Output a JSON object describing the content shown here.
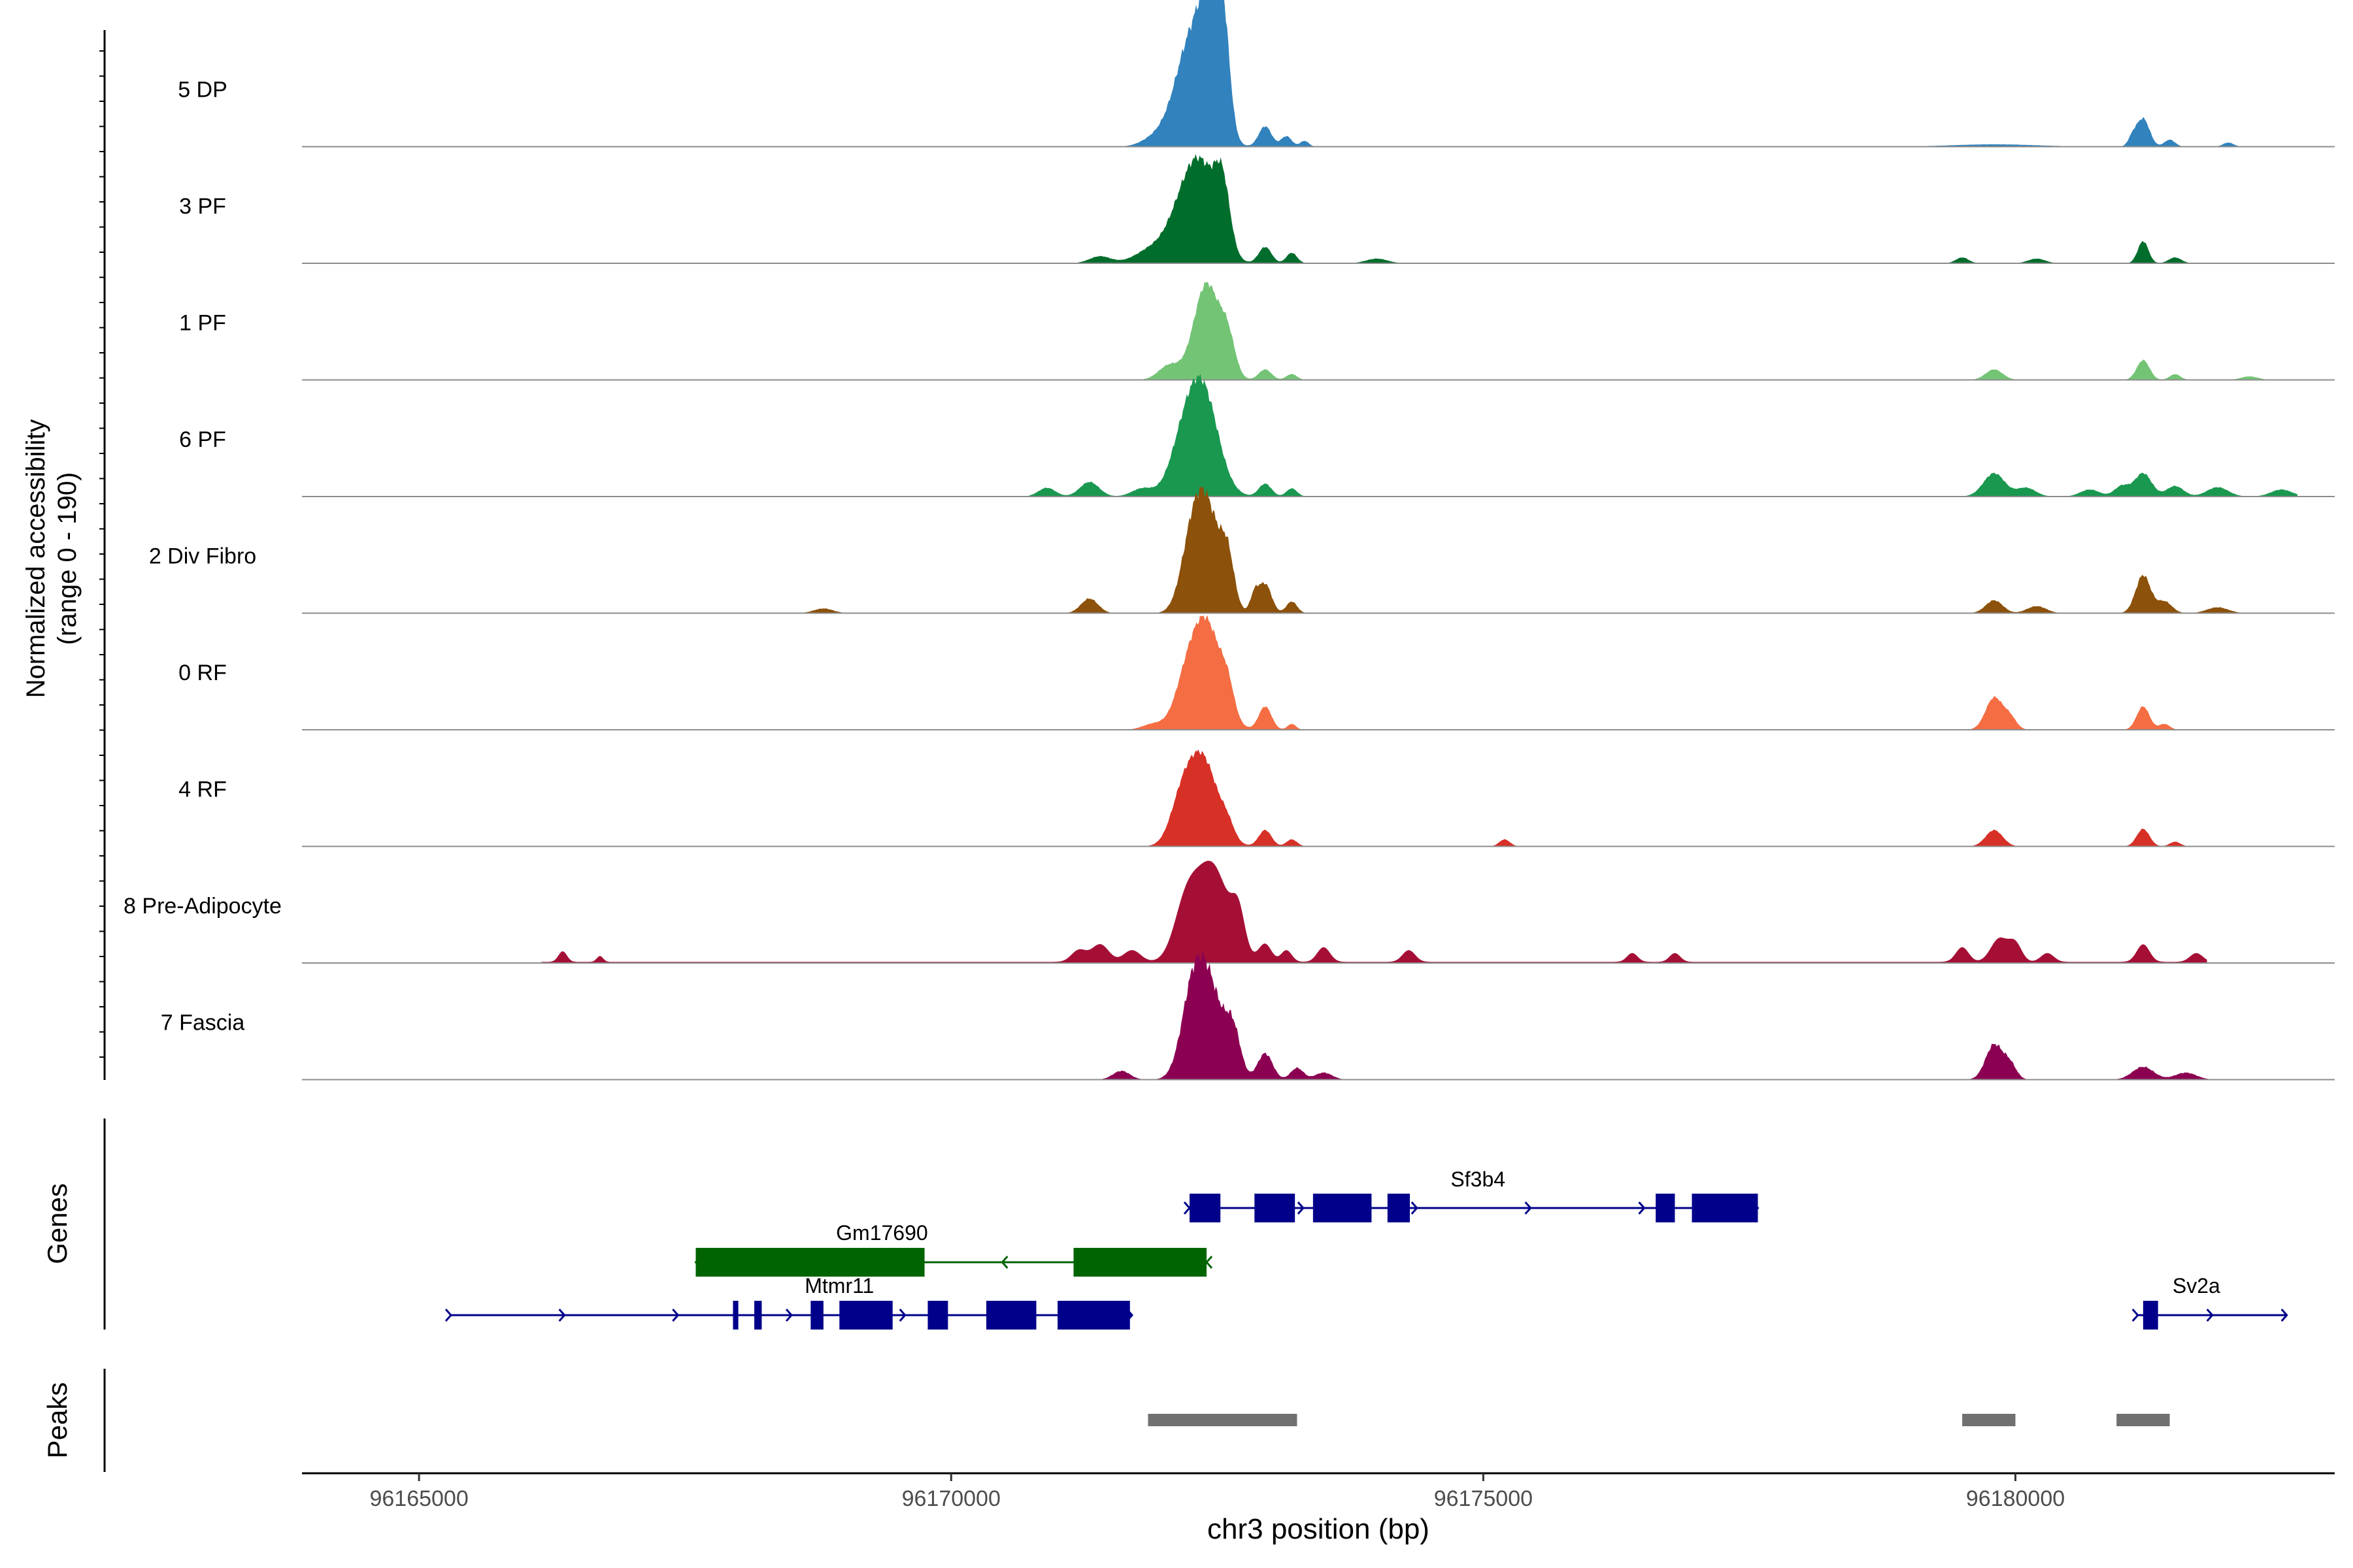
{
  "chart_data": {
    "type": "area",
    "ylabel": "Normalized accessibility",
    "ylabel_range": "(range 0 - 190)",
    "ylim": [
      0,
      190
    ],
    "xlabel": "chr3 position (bp)",
    "xlim": [
      96163900,
      96183000
    ],
    "xticks": [
      96165000,
      96170000,
      96175000,
      96180000
    ],
    "tracks": [
      {
        "name": "5 DP",
        "color": "#3182bd",
        "start": 96165000,
        "end": 96182550,
        "noise": 0.055,
        "peaks": [
          [
            96172270,
            160,
            190
          ],
          [
            96172450,
            95,
            165
          ],
          [
            96172560,
            60,
            140
          ],
          [
            96172950,
            60,
            35
          ],
          [
            96173150,
            50,
            18
          ],
          [
            96173320,
            40,
            10
          ],
          [
            96171900,
            120,
            12
          ],
          [
            96181200,
            60,
            48
          ],
          [
            96181100,
            40,
            15
          ],
          [
            96181450,
            50,
            12
          ],
          [
            96182000,
            50,
            7
          ],
          [
            96179800,
            400,
            4
          ]
        ]
      },
      {
        "name": "3 PF",
        "color": "#006d2c",
        "start": 96165000,
        "end": 96182600,
        "noise": 0.05,
        "peaks": [
          [
            96172350,
            150,
            160
          ],
          [
            96172550,
            70,
            100
          ],
          [
            96172150,
            130,
            55
          ],
          [
            96171900,
            160,
            25
          ],
          [
            96172950,
            60,
            28
          ],
          [
            96173200,
            50,
            18
          ],
          [
            96171400,
            100,
            12
          ],
          [
            96174000,
            100,
            8
          ],
          [
            96181200,
            50,
            38
          ],
          [
            96181500,
            60,
            10
          ],
          [
            96179500,
            60,
            10
          ],
          [
            96180200,
            80,
            8
          ]
        ]
      },
      {
        "name": "1 PF",
        "color": "#74c476",
        "start": 96165000,
        "end": 96182600,
        "noise": 0.04,
        "peaks": [
          [
            96172400,
            120,
            165
          ],
          [
            96172600,
            70,
            60
          ],
          [
            96172050,
            100,
            25
          ],
          [
            96172950,
            60,
            18
          ],
          [
            96173200,
            50,
            10
          ],
          [
            96179800,
            80,
            18
          ],
          [
            96181200,
            60,
            34
          ],
          [
            96181500,
            50,
            10
          ],
          [
            96182200,
            80,
            6
          ]
        ]
      },
      {
        "name": "6 PF",
        "color": "#1a9850",
        "start": 96165000,
        "end": 96182650,
        "noise": 0.05,
        "peaks": [
          [
            96172350,
            150,
            190
          ],
          [
            96172150,
            120,
            50
          ],
          [
            96172950,
            60,
            22
          ],
          [
            96173200,
            50,
            14
          ],
          [
            96171300,
            90,
            25
          ],
          [
            96170900,
            80,
            15
          ],
          [
            96171800,
            100,
            14
          ],
          [
            96179800,
            100,
            40
          ],
          [
            96180100,
            90,
            15
          ],
          [
            96180700,
            90,
            12
          ],
          [
            96181200,
            80,
            40
          ],
          [
            96181000,
            70,
            18
          ],
          [
            96181500,
            80,
            18
          ],
          [
            96181900,
            100,
            16
          ],
          [
            96182500,
            100,
            12
          ]
        ]
      },
      {
        "name": "2 Div Fibro",
        "color": "#8c510a",
        "start": 96165000,
        "end": 96182600,
        "noise": 0.06,
        "peaks": [
          [
            96172400,
            130,
            180
          ],
          [
            96172250,
            100,
            75
          ],
          [
            96172600,
            60,
            70
          ],
          [
            96172950,
            60,
            50
          ],
          [
            96172850,
            40,
            30
          ],
          [
            96173200,
            50,
            20
          ],
          [
            96171300,
            80,
            25
          ],
          [
            96179800,
            80,
            22
          ],
          [
            96180200,
            90,
            12
          ],
          [
            96181200,
            70,
            65
          ],
          [
            96181400,
            70,
            20
          ],
          [
            96181900,
            100,
            10
          ],
          [
            96168800,
            90,
            8
          ]
        ]
      },
      {
        "name": "0 RF",
        "color": "#f46d43",
        "start": 96165000,
        "end": 96182500,
        "noise": 0.04,
        "peaks": [
          [
            96172400,
            140,
            180
          ],
          [
            96172200,
            110,
            60
          ],
          [
            96172600,
            60,
            40
          ],
          [
            96172950,
            60,
            40
          ],
          [
            96173200,
            40,
            10
          ],
          [
            96171900,
            100,
            10
          ],
          [
            96179800,
            80,
            55
          ],
          [
            96179950,
            60,
            20
          ],
          [
            96181200,
            60,
            40
          ],
          [
            96181400,
            50,
            10
          ]
        ]
      },
      {
        "name": "4 RF",
        "color": "#d73027",
        "start": 96165000,
        "end": 96182600,
        "noise": 0.04,
        "peaks": [
          [
            96172350,
            150,
            155
          ],
          [
            96172150,
            100,
            45
          ],
          [
            96172600,
            60,
            20
          ],
          [
            96172950,
            60,
            28
          ],
          [
            96173200,
            50,
            12
          ],
          [
            96175200,
            50,
            12
          ],
          [
            96179800,
            80,
            28
          ],
          [
            96181200,
            60,
            30
          ],
          [
            96181500,
            50,
            8
          ]
        ]
      },
      {
        "name": "8 Pre-Adipocyte",
        "color": "#a50f36",
        "start": 96166150,
        "end": 96181800,
        "noise": 0,
        "min": 2,
        "peaks": [
          [
            96172450,
            160,
            165
          ],
          [
            96172200,
            110,
            80
          ],
          [
            96172700,
            60,
            60
          ],
          [
            96172950,
            60,
            30
          ],
          [
            96173150,
            50,
            20
          ],
          [
            96173500,
            60,
            25
          ],
          [
            96171400,
            80,
            30
          ],
          [
            96171200,
            70,
            20
          ],
          [
            96171700,
            80,
            20
          ],
          [
            96174300,
            60,
            20
          ],
          [
            96176400,
            50,
            15
          ],
          [
            96176800,
            50,
            15
          ],
          [
            96179500,
            60,
            25
          ],
          [
            96179850,
            80,
            40
          ],
          [
            96180000,
            60,
            30
          ],
          [
            96180300,
            60,
            15
          ],
          [
            96181200,
            60,
            30
          ],
          [
            96181700,
            60,
            15
          ],
          [
            96166350,
            40,
            18
          ],
          [
            96166700,
            30,
            10
          ]
        ]
      },
      {
        "name": "7 Fascia",
        "color": "#8c0052",
        "start": 96165000,
        "end": 96182550,
        "noise": 0.07,
        "peaks": [
          [
            96172400,
            140,
            175
          ],
          [
            96172250,
            100,
            80
          ],
          [
            96172650,
            70,
            70
          ],
          [
            96172950,
            70,
            45
          ],
          [
            96173250,
            60,
            20
          ],
          [
            96173500,
            80,
            12
          ],
          [
            96171600,
            80,
            15
          ],
          [
            96179800,
            80,
            60
          ],
          [
            96179950,
            60,
            25
          ],
          [
            96181200,
            100,
            22
          ],
          [
            96181600,
            100,
            12
          ]
        ]
      }
    ],
    "genes": [
      {
        "name": "Sf3b4",
        "color": "#00008b",
        "strand": "+",
        "start": 96172240,
        "end": 96177580,
        "exons": [
          [
            96172240,
            96172530
          ],
          [
            96172850,
            96173230
          ],
          [
            96173400,
            96173950
          ],
          [
            96174100,
            96174310
          ],
          [
            96176620,
            96176800
          ],
          [
            96176960,
            96177580
          ]
        ]
      },
      {
        "name": "Gm17690",
        "color": "#006400",
        "strand": "-",
        "start": 96167600,
        "end": 96172400,
        "exons": [
          [
            96167600,
            96169750
          ],
          [
            96171150,
            96172400
          ]
        ]
      },
      {
        "name": "Mtmr11",
        "color": "#00008b",
        "strand": "+",
        "start": 96165300,
        "end": 96171700,
        "exons": [
          [
            96167950,
            96168000
          ],
          [
            96168150,
            96168220
          ],
          [
            96168680,
            96168800
          ],
          [
            96168950,
            96169450
          ],
          [
            96169780,
            96169970
          ],
          [
            96170330,
            96170800
          ],
          [
            96171000,
            96171680
          ]
        ]
      },
      {
        "name": "Sv2a",
        "color": "#00008b",
        "strand": "+",
        "start": 96181150,
        "end": 96182550,
        "exons": [
          [
            96181200,
            96181340
          ]
        ]
      }
    ],
    "peaks": [
      {
        "start": 96171850,
        "end": 96173250
      },
      {
        "start": 96179500,
        "end": 96180000
      },
      {
        "start": 96180950,
        "end": 96181450
      }
    ],
    "panel_labels": {
      "genes": "Genes",
      "peaks": "Peaks"
    }
  }
}
